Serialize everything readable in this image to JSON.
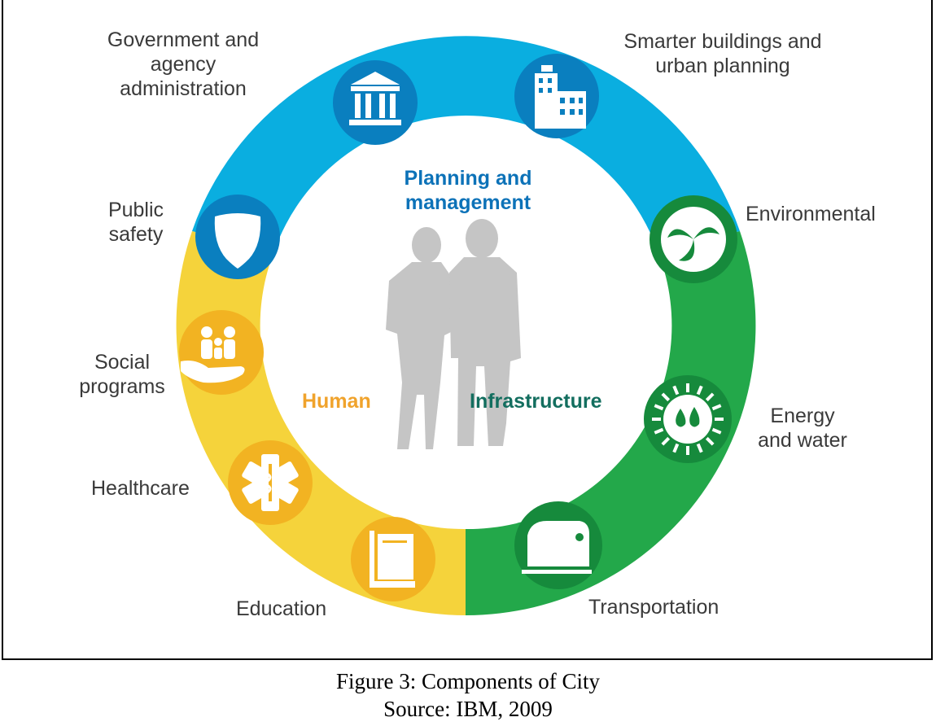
{
  "colors": {
    "planning": "#0aaee0",
    "planning_dark": "#0a7fbf",
    "human": "#f5d33b",
    "human_dark": "#f2b322",
    "infrastructure": "#23a84a",
    "infrastructure_dark": "#168a3c",
    "people": "#c5c5c5",
    "text": "#3a3a3a",
    "planning_text": "#0c72b8",
    "human_text": "#f0a32c",
    "infra_text": "#136e5f"
  },
  "center": {
    "planning": "Planning and\nmanagement",
    "human": "Human",
    "infrastructure": "Infrastructure"
  },
  "segments": [
    {
      "label": "Government and\nagency\nadministration",
      "icon": "government-building-icon"
    },
    {
      "label": "Smarter buildings and\nurban planning",
      "icon": "city-buildings-icon"
    },
    {
      "label": "Environmental",
      "icon": "environment-swirl-icon"
    },
    {
      "label": "Energy\nand water",
      "icon": "energy-water-drops-icon"
    },
    {
      "label": "Transportation",
      "icon": "train-icon"
    },
    {
      "label": "Education",
      "icon": "book-icon"
    },
    {
      "label": "Healthcare",
      "icon": "medical-star-icon"
    },
    {
      "label": "Social\nprograms",
      "icon": "family-hand-icon"
    },
    {
      "label": "Public\nsafety",
      "icon": "police-badge-icon"
    }
  ],
  "caption": {
    "title": "Figure 3: Components of City",
    "source": "Source: IBM, 2009"
  }
}
